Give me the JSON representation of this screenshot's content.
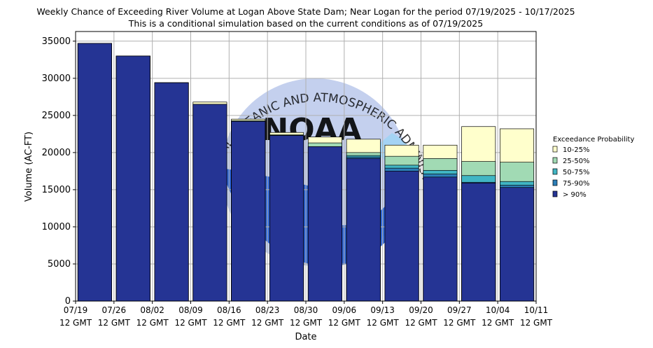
{
  "chart_data": {
    "type": "bar",
    "title": "Weekly Chance of Exceeding River Volume at Logan Above State Dam; Near Logan for the period 07/19/2025 - 10/17/2025",
    "subtitle": "This is a conditional simulation based on the current conditions as of 07/19/2025",
    "xlabel": "Date",
    "ylabel": "Volume (AC-FT)",
    "ylim": [
      0,
      36300
    ],
    "yticks": [
      0,
      5000,
      10000,
      15000,
      20000,
      25000,
      30000,
      35000
    ],
    "xtick_labels": [
      [
        "07/19",
        "12 GMT"
      ],
      [
        "07/26",
        "12 GMT"
      ],
      [
        "08/02",
        "12 GMT"
      ],
      [
        "08/09",
        "12 GMT"
      ],
      [
        "08/16",
        "12 GMT"
      ],
      [
        "08/23",
        "12 GMT"
      ],
      [
        "08/30",
        "12 GMT"
      ],
      [
        "09/06",
        "12 GMT"
      ],
      [
        "09/13",
        "12 GMT"
      ],
      [
        "09/20",
        "12 GMT"
      ],
      [
        "09/27",
        "12 GMT"
      ],
      [
        "10/04",
        "12 GMT"
      ],
      [
        "10/11",
        "12 GMT"
      ]
    ],
    "grid": true,
    "legend": {
      "title": "Exceedance Probability",
      "placement": "right"
    },
    "watermark_text": "NATIONAL OCEANIC AND ATMOSPHERIC ADMINISTRATION",
    "watermark_logo": "NOAA",
    "series": [
      {
        "name": "10-25%",
        "color": "#ffffcc",
        "values": [
          34700,
          33000,
          29400,
          26800,
          24500,
          22700,
          22100,
          21800,
          21000,
          21000,
          23500,
          23200
        ]
      },
      {
        "name": "25-50%",
        "color": "#a1dab4",
        "values": [
          34700,
          33000,
          29400,
          26500,
          24300,
          22400,
          21300,
          20000,
          19500,
          19200,
          18800,
          18700
        ]
      },
      {
        "name": "50-75%",
        "color": "#41b6c4",
        "values": [
          34700,
          33000,
          29400,
          26500,
          24200,
          22300,
          20800,
          19600,
          18300,
          17600,
          16900,
          16100
        ]
      },
      {
        "name": "75-90%",
        "color": "#2c7fb8",
        "values": [
          34700,
          33000,
          29400,
          26500,
          24200,
          22300,
          20800,
          19400,
          17900,
          17100,
          16000,
          15600
        ]
      },
      {
        "name": "> 90%",
        "color": "#253494",
        "values": [
          34700,
          33000,
          29400,
          26500,
          24200,
          22300,
          20800,
          19200,
          17500,
          16700,
          15900,
          15300
        ]
      }
    ]
  }
}
